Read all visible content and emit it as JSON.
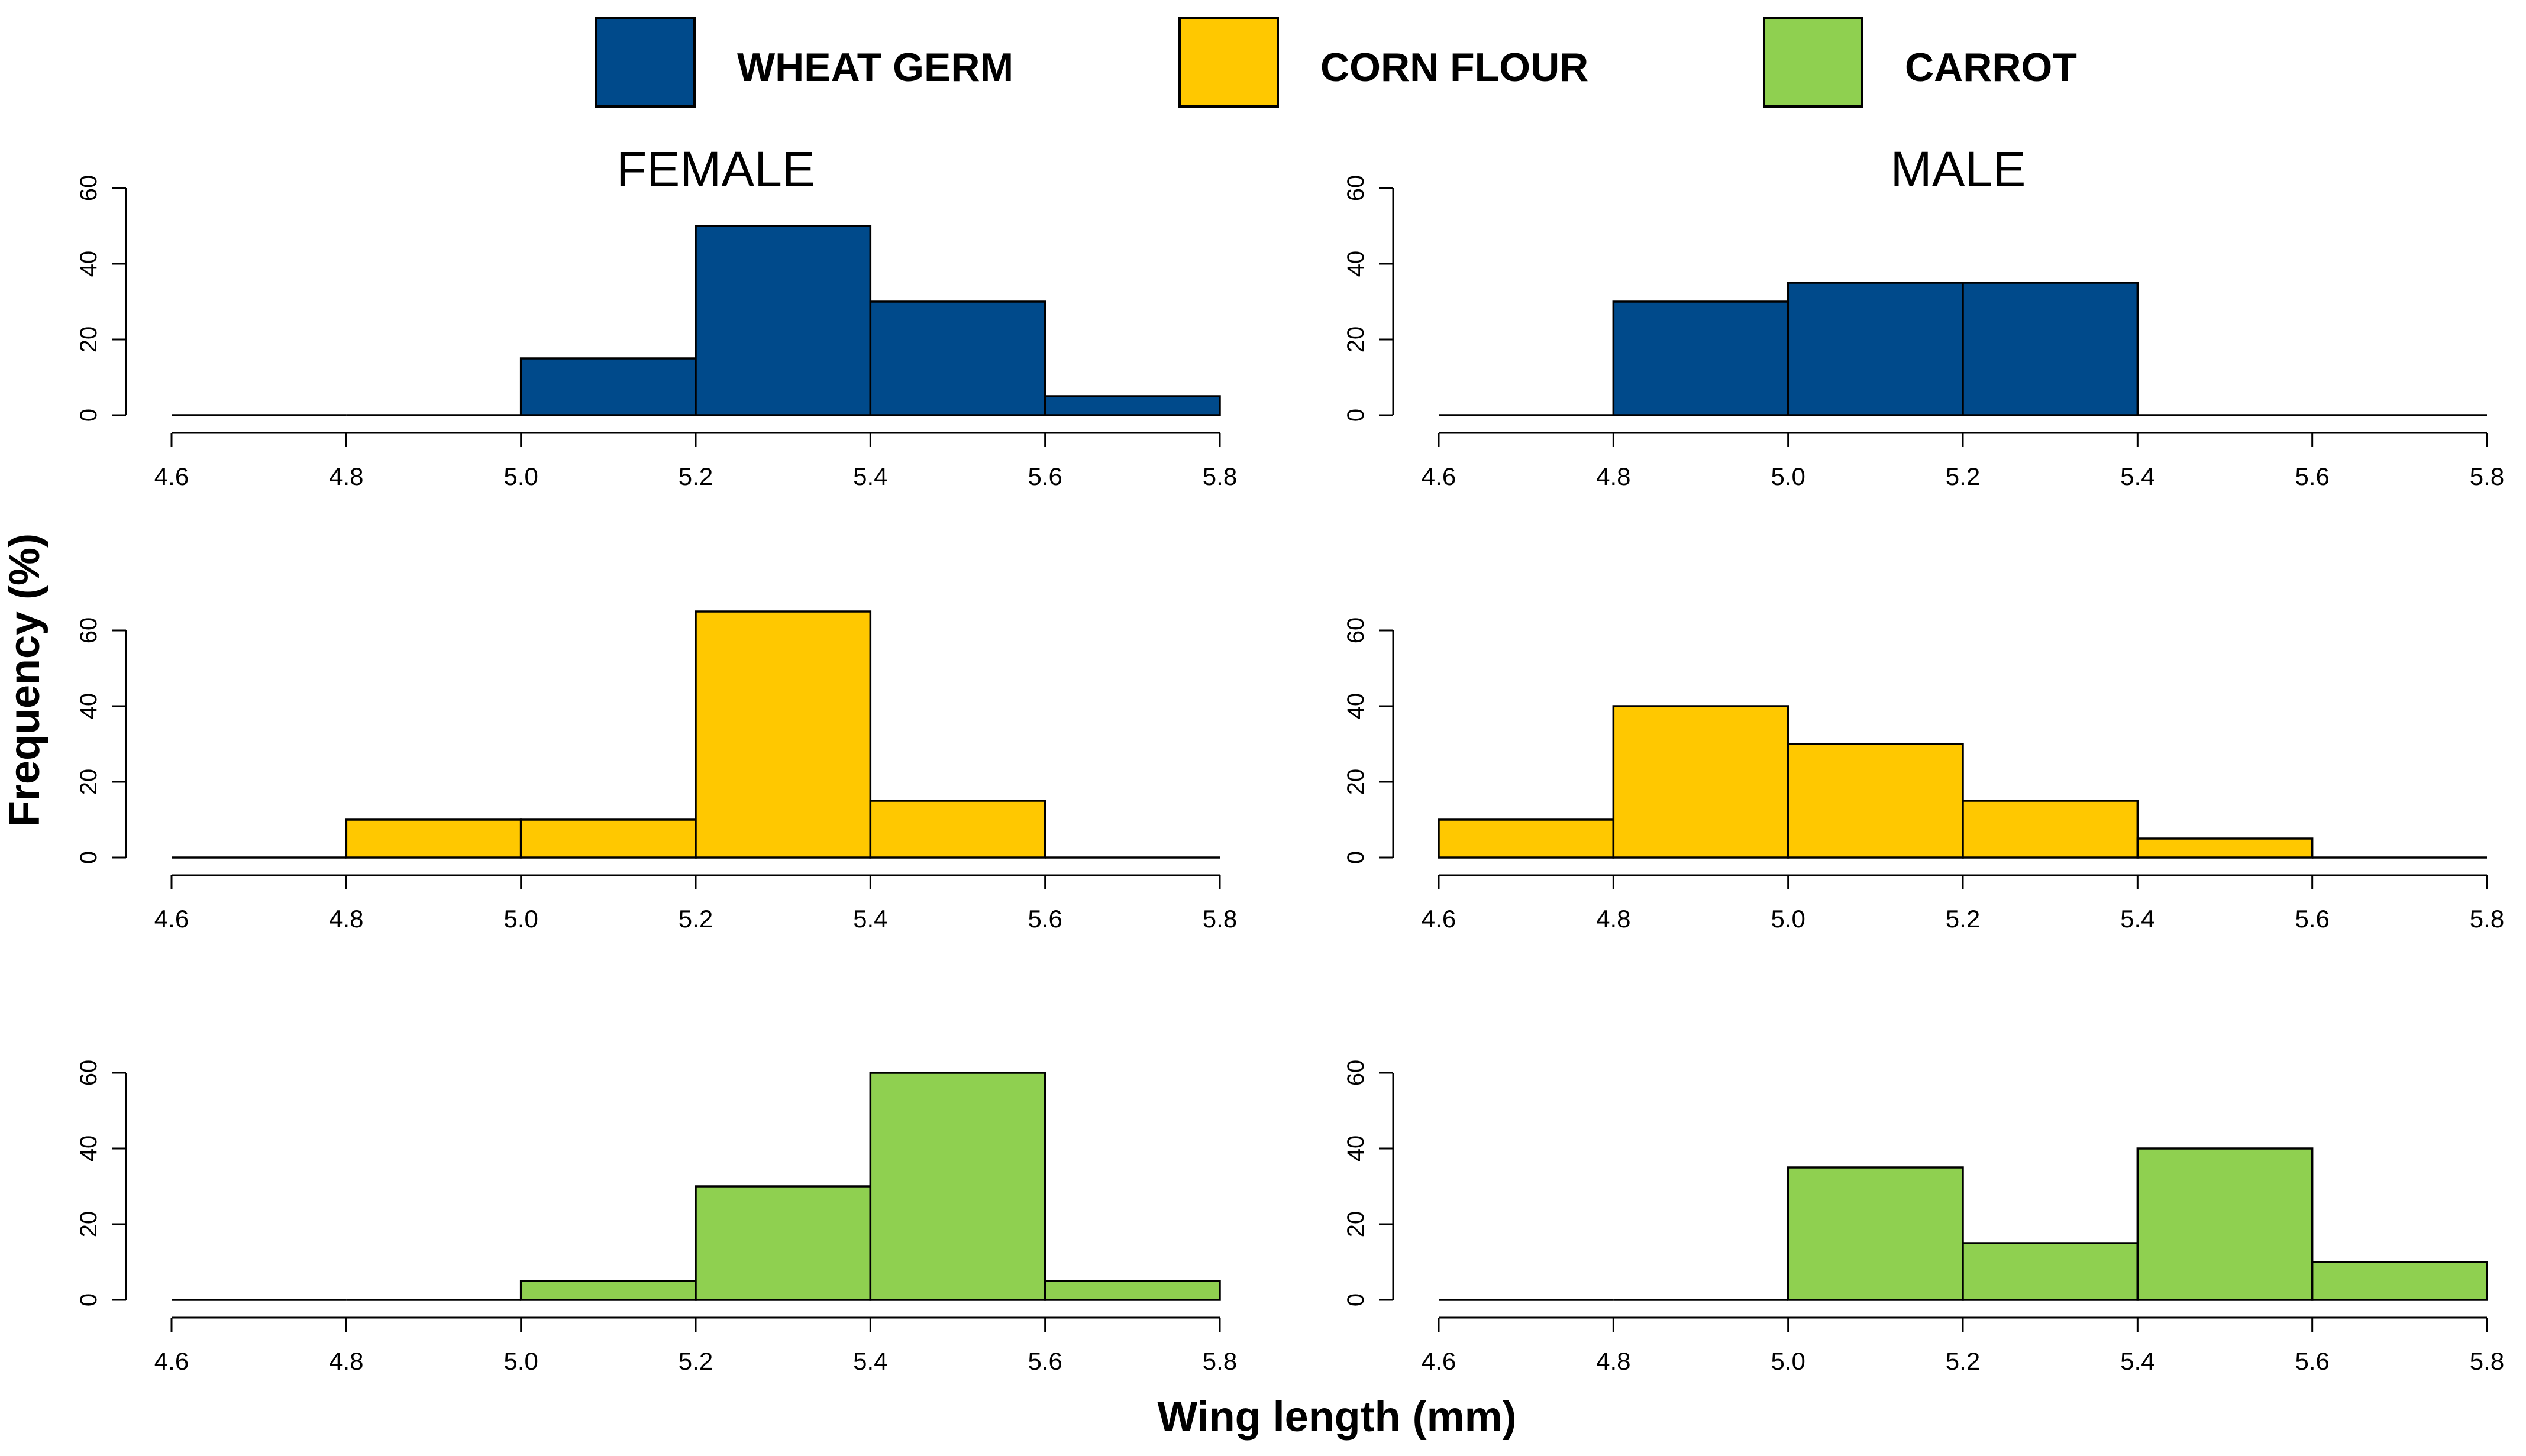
{
  "legend": [
    {
      "label": "WHEAT GERM",
      "color": "#004A8B"
    },
    {
      "label": "CORN FLOUR",
      "color": "#FFC800"
    },
    {
      "label": "CARROT",
      "color": "#8FD050"
    }
  ],
  "column_titles": [
    "FEMALE",
    "MALE"
  ],
  "ylabel": "Frequency   (%)",
  "xlabel": "Wing length (mm)",
  "chart_data": [
    {
      "type": "bar",
      "title": "FEMALE",
      "diet": "WHEAT GERM",
      "color": "#004A8B",
      "bin_edges": [
        4.6,
        4.8,
        5.0,
        5.2,
        5.4,
        5.6,
        5.8
      ],
      "values": [
        0,
        0,
        15,
        50,
        30,
        5
      ],
      "xlim": [
        4.6,
        5.8
      ],
      "ylim": [
        0,
        60
      ],
      "xticks": [
        "4.6",
        "4.8",
        "5.0",
        "5.2",
        "5.4",
        "5.6",
        "5.8"
      ],
      "yticks": [
        "0",
        "20",
        "40",
        "60"
      ]
    },
    {
      "type": "bar",
      "title": "MALE",
      "diet": "WHEAT GERM",
      "color": "#004A8B",
      "bin_edges": [
        4.6,
        4.8,
        5.0,
        5.2,
        5.4,
        5.6,
        5.8
      ],
      "values": [
        0,
        30,
        35,
        35,
        0,
        0
      ],
      "xlim": [
        4.6,
        5.8
      ],
      "ylim": [
        0,
        60
      ],
      "xticks": [
        "4.6",
        "4.8",
        "5.0",
        "5.2",
        "5.4",
        "5.6",
        "5.8"
      ],
      "yticks": [
        "0",
        "20",
        "40",
        "60"
      ]
    },
    {
      "type": "bar",
      "title": "FEMALE",
      "diet": "CORN FLOUR",
      "color": "#FFC800",
      "bin_edges": [
        4.6,
        4.8,
        5.0,
        5.2,
        5.4,
        5.6,
        5.8
      ],
      "values": [
        0,
        10,
        10,
        65,
        15,
        0
      ],
      "xlim": [
        4.6,
        5.8
      ],
      "ylim": [
        0,
        60
      ],
      "xticks": [
        "4.6",
        "4.8",
        "5.0",
        "5.2",
        "5.4",
        "5.6",
        "5.8"
      ],
      "yticks": [
        "0",
        "20",
        "40",
        "60"
      ]
    },
    {
      "type": "bar",
      "title": "MALE",
      "diet": "CORN FLOUR",
      "color": "#FFC800",
      "bin_edges": [
        4.6,
        4.8,
        5.0,
        5.2,
        5.4,
        5.6,
        5.8
      ],
      "values": [
        10,
        40,
        30,
        15,
        5,
        0
      ],
      "xlim": [
        4.6,
        5.8
      ],
      "ylim": [
        0,
        60
      ],
      "xticks": [
        "4.6",
        "4.8",
        "5.0",
        "5.2",
        "5.4",
        "5.6",
        "5.8"
      ],
      "yticks": [
        "0",
        "20",
        "40",
        "60"
      ]
    },
    {
      "type": "bar",
      "title": "FEMALE",
      "diet": "CARROT",
      "color": "#8FD050",
      "bin_edges": [
        4.6,
        4.8,
        5.0,
        5.2,
        5.4,
        5.6,
        5.8
      ],
      "values": [
        0,
        0,
        5,
        30,
        60,
        5
      ],
      "xlim": [
        4.6,
        5.8
      ],
      "ylim": [
        0,
        60
      ],
      "xticks": [
        "4.6",
        "4.8",
        "5.0",
        "5.2",
        "5.4",
        "5.6",
        "5.8"
      ],
      "yticks": [
        "0",
        "20",
        "40",
        "60"
      ]
    },
    {
      "type": "bar",
      "title": "MALE",
      "diet": "CARROT",
      "color": "#8FD050",
      "bin_edges": [
        4.6,
        4.8,
        5.0,
        5.2,
        5.4,
        5.6,
        5.8
      ],
      "values": [
        0,
        0,
        35,
        15,
        40,
        10
      ],
      "xlim": [
        4.6,
        5.8
      ],
      "ylim": [
        0,
        60
      ],
      "xticks": [
        "4.6",
        "4.8",
        "5.0",
        "5.2",
        "5.4",
        "5.6",
        "5.8"
      ],
      "yticks": [
        "0",
        "20",
        "40",
        "60"
      ]
    }
  ]
}
